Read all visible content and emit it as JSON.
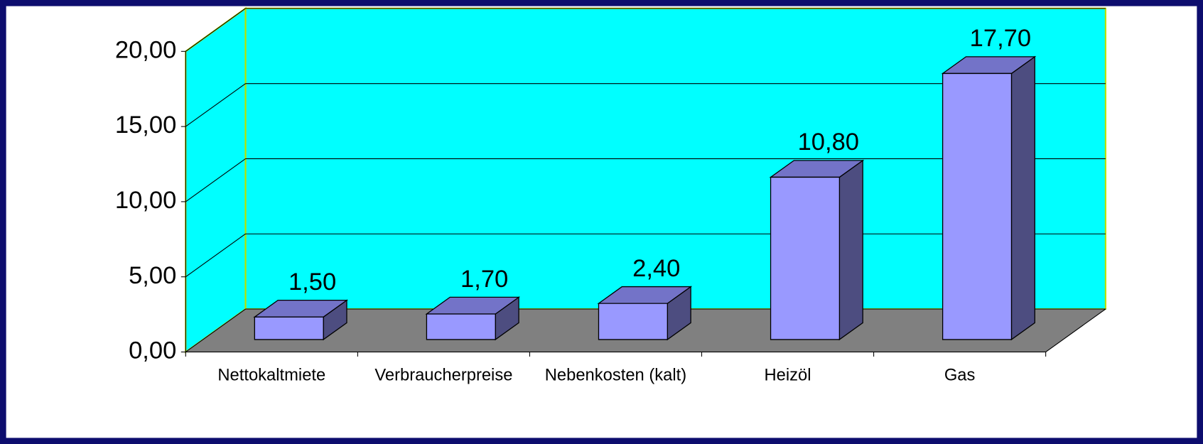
{
  "chart_data": {
    "type": "bar3d",
    "categories": [
      "Nettokaltmiete",
      "Verbraucherpreise",
      "Nebenkosten (kalt)",
      "Heizöl",
      "Gas"
    ],
    "values": [
      1.5,
      1.7,
      2.4,
      10.8,
      17.7
    ],
    "value_labels": [
      "1,50",
      "1,70",
      "2,40",
      "10,80",
      "17,70"
    ],
    "color": "#9999ff",
    "ylim": [
      0,
      20
    ],
    "yticks": [
      {
        "value": 0,
        "label": "0,00"
      },
      {
        "value": 5,
        "label": "5,00"
      },
      {
        "value": 10,
        "label": "10,00"
      },
      {
        "value": 15,
        "label": "15,00"
      },
      {
        "value": 20,
        "label": "20,00"
      }
    ],
    "grid": true
  }
}
